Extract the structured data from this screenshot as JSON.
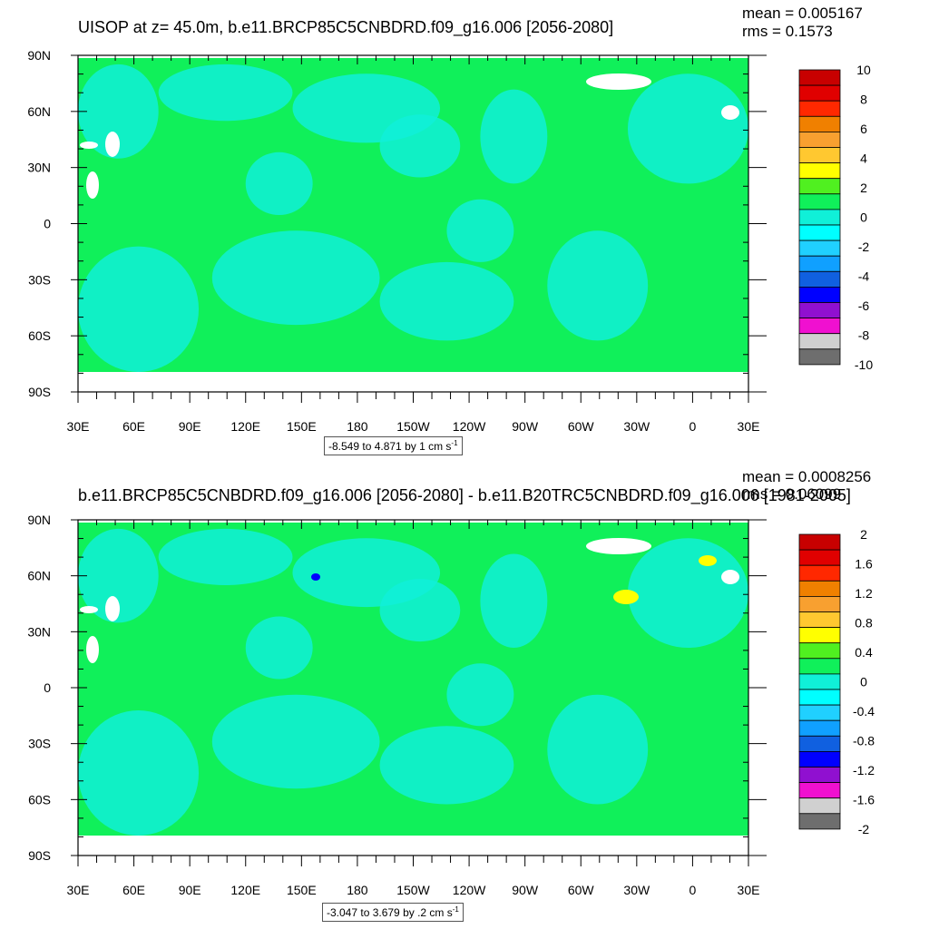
{
  "panels": [
    {
      "title": "UISOP at z=  45.0m, b.e11.BRCP85C5CNBDRD.f09_g16.006 [2056-2080]",
      "mean_text": "mean = 0.005167",
      "rms_text": "rms = 0.1573",
      "range_text": "-8.549 to 4.871 by 1 cm s",
      "range_unit_sup": "-1",
      "colorbar_labels": [
        "10",
        "8",
        "6",
        "4",
        "2",
        "0",
        "-2",
        "-4",
        "-6",
        "-8",
        "-10"
      ]
    },
    {
      "title": "b.e11.BRCP85C5CNBDRD.f09_g16.006 [2056-2080] - b.e11.B20TRC5CNBDRD.f09_g16.006 [1981-2005]",
      "mean_text": "mean = 0.0008256",
      "rms_text": "rms = 0.06099",
      "range_text": "-3.047 to 3.679 by .2 cm s",
      "range_unit_sup": "-1",
      "colorbar_labels": [
        "2",
        "1.6",
        "1.2",
        "0.8",
        "0.4",
        "0",
        "-0.4",
        "-0.8",
        "-1.2",
        "-1.6",
        "-2"
      ]
    }
  ],
  "axes": {
    "lat_labels": [
      "90N",
      "60N",
      "30N",
      "0",
      "30S",
      "60S",
      "90S"
    ],
    "lon_labels": [
      "30E",
      "60E",
      "90E",
      "120E",
      "150E",
      "180",
      "150W",
      "120W",
      "90W",
      "60W",
      "30W",
      "0",
      "30E"
    ]
  },
  "colors": {
    "ocean_base": "#10f05a",
    "cyan_patch": "#10f0d8",
    "colorbar": [
      "#c80000",
      "#e00000",
      "#ff2800",
      "#f08000",
      "#f8a030",
      "#ffc830",
      "#ffff00",
      "#50f020",
      "#10f05a",
      "#10f0d8",
      "#00ffff",
      "#20d0ff",
      "#10a0ff",
      "#1060e0",
      "#0000ff",
      "#9010d0",
      "#f010d0",
      "#d0d0d0",
      "#6e6e6e"
    ]
  }
}
